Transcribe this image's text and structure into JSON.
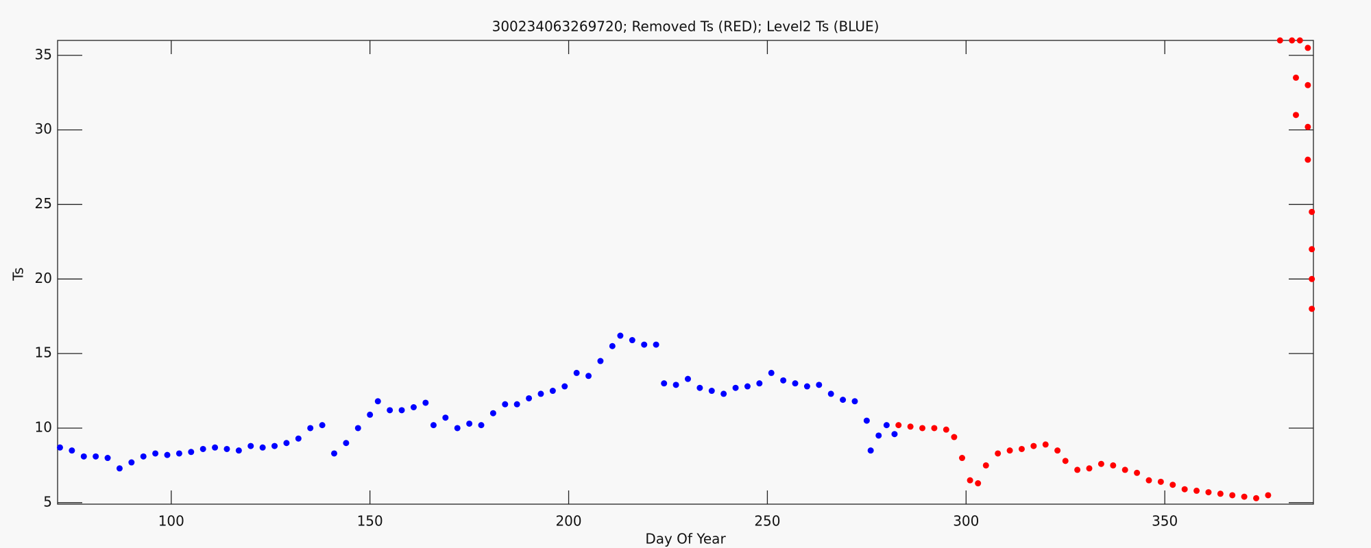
{
  "chart_data": {
    "type": "scatter",
    "title": "300234063269720; Removed Ts (RED); Level2 Ts (BLUE)",
    "x_label": "Day Of Year",
    "y_label": "Ts",
    "xlim": [
      71.4,
      387.4
    ],
    "ylim": [
      4.9,
      36
    ],
    "xticks": [
      100,
      150,
      200,
      250,
      300,
      350
    ],
    "yticks": [
      5,
      10,
      15,
      20,
      25,
      30,
      35
    ],
    "series": [
      {
        "color": "#0000ff",
        "x": [
          72,
          75,
          78,
          81,
          84,
          87,
          90,
          93,
          96,
          99,
          102,
          105,
          108,
          111,
          114,
          117,
          120,
          123,
          126,
          129,
          132,
          135,
          138,
          141,
          144,
          147,
          150,
          152,
          155,
          158,
          161,
          164,
          166,
          169,
          172,
          175,
          178,
          181,
          184,
          187,
          190,
          193,
          196,
          199,
          202,
          205,
          208,
          211,
          213,
          216,
          219,
          222,
          224,
          227,
          230,
          233,
          236,
          239,
          242,
          245,
          248,
          251,
          254,
          257,
          260,
          263,
          266,
          269,
          272,
          275,
          276,
          278,
          280,
          282
        ],
        "values": [
          8.7,
          8.5,
          8.1,
          8.1,
          8.0,
          7.3,
          7.7,
          8.1,
          8.3,
          8.2,
          8.3,
          8.4,
          8.6,
          8.7,
          8.6,
          8.5,
          8.8,
          8.7,
          8.8,
          9.0,
          9.3,
          10.0,
          10.2,
          8.3,
          9.0,
          10.0,
          10.9,
          11.8,
          11.2,
          11.2,
          11.4,
          11.7,
          10.2,
          10.7,
          10.0,
          10.3,
          10.2,
          11.0,
          11.6,
          11.6,
          12.0,
          12.3,
          12.5,
          12.8,
          13.7,
          13.5,
          14.5,
          15.5,
          16.2,
          15.9,
          15.6,
          15.6,
          13.0,
          12.9,
          13.3,
          12.7,
          12.5,
          12.3,
          12.7,
          12.8,
          13.0,
          13.7,
          13.2,
          13.0,
          12.8,
          12.9,
          12.3,
          11.9,
          11.8,
          10.5,
          8.5,
          9.5,
          10.2,
          9.6
        ]
      },
      {
        "color": "#ff0000",
        "x": [
          283,
          286,
          289,
          292,
          295,
          297,
          299,
          301,
          303,
          305,
          308,
          311,
          314,
          317,
          320,
          323,
          325,
          328,
          331,
          334,
          337,
          340,
          343,
          346,
          349,
          352,
          355,
          358,
          361,
          364,
          367,
          370,
          373,
          376,
          379,
          382,
          383,
          383,
          384,
          386,
          386,
          386,
          386,
          387,
          387,
          387,
          387
        ],
        "values": [
          10.2,
          10.1,
          10.0,
          10.0,
          9.9,
          9.4,
          8.0,
          6.5,
          6.3,
          7.5,
          8.3,
          8.5,
          8.6,
          8.8,
          8.9,
          8.5,
          7.8,
          7.2,
          7.3,
          7.6,
          7.5,
          7.2,
          7.0,
          6.5,
          6.4,
          6.2,
          5.9,
          5.8,
          5.7,
          5.6,
          5.5,
          5.4,
          5.3,
          5.5,
          36,
          36,
          33.5,
          31,
          36,
          35.5,
          33,
          30.2,
          28,
          24.5,
          22,
          20,
          18
        ]
      }
    ]
  }
}
